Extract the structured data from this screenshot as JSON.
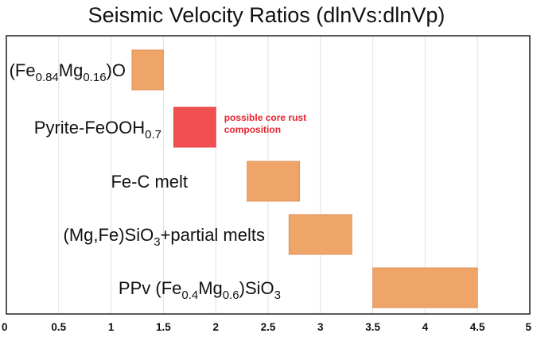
{
  "chart_data": {
    "type": "bar",
    "orientation": "horizontal-range",
    "title": "Seismic Velocity Ratios (dlnVs:dlnVp)",
    "xlabel": "",
    "ylabel": "",
    "xlim": [
      0,
      5
    ],
    "x_ticks": [
      0,
      0.5,
      1,
      1.5,
      2,
      2.5,
      3,
      3.5,
      4,
      4.5,
      5
    ],
    "x_tick_labels": [
      "0",
      "0.5",
      "1",
      "1.5",
      "2",
      "2.5",
      "3",
      "3.5",
      "4",
      "4.5",
      "5"
    ],
    "grid": "vertical",
    "categories": [
      {
        "text": "(Fe<sub>0.84</sub>Mg<sub>0.16</sub>)O",
        "start": 1.2,
        "end": 1.5,
        "color": "#f0a568"
      },
      {
        "text": "Pyrite-FeOOH<sub>0.7</sub>",
        "start": 1.6,
        "end": 2.0,
        "color": "#f05050"
      },
      {
        "text": "Fe-C melt",
        "start": 2.3,
        "end": 2.8,
        "color": "#f0a568"
      },
      {
        "text": "(Mg,Fe)SiO<sub>3</sub>+partial melts",
        "start": 2.7,
        "end": 3.3,
        "color": "#f0a568"
      },
      {
        "text": "PPv (Fe<sub>0.4</sub>Mg<sub>0.6</sub>)SiO<sub>3</sub>",
        "start": 3.5,
        "end": 4.5,
        "color": "#f0a568"
      }
    ],
    "annotations": [
      {
        "lines": [
          "possible core rust",
          "composition"
        ],
        "target_category": 1,
        "color": "#e8232e"
      }
    ]
  }
}
